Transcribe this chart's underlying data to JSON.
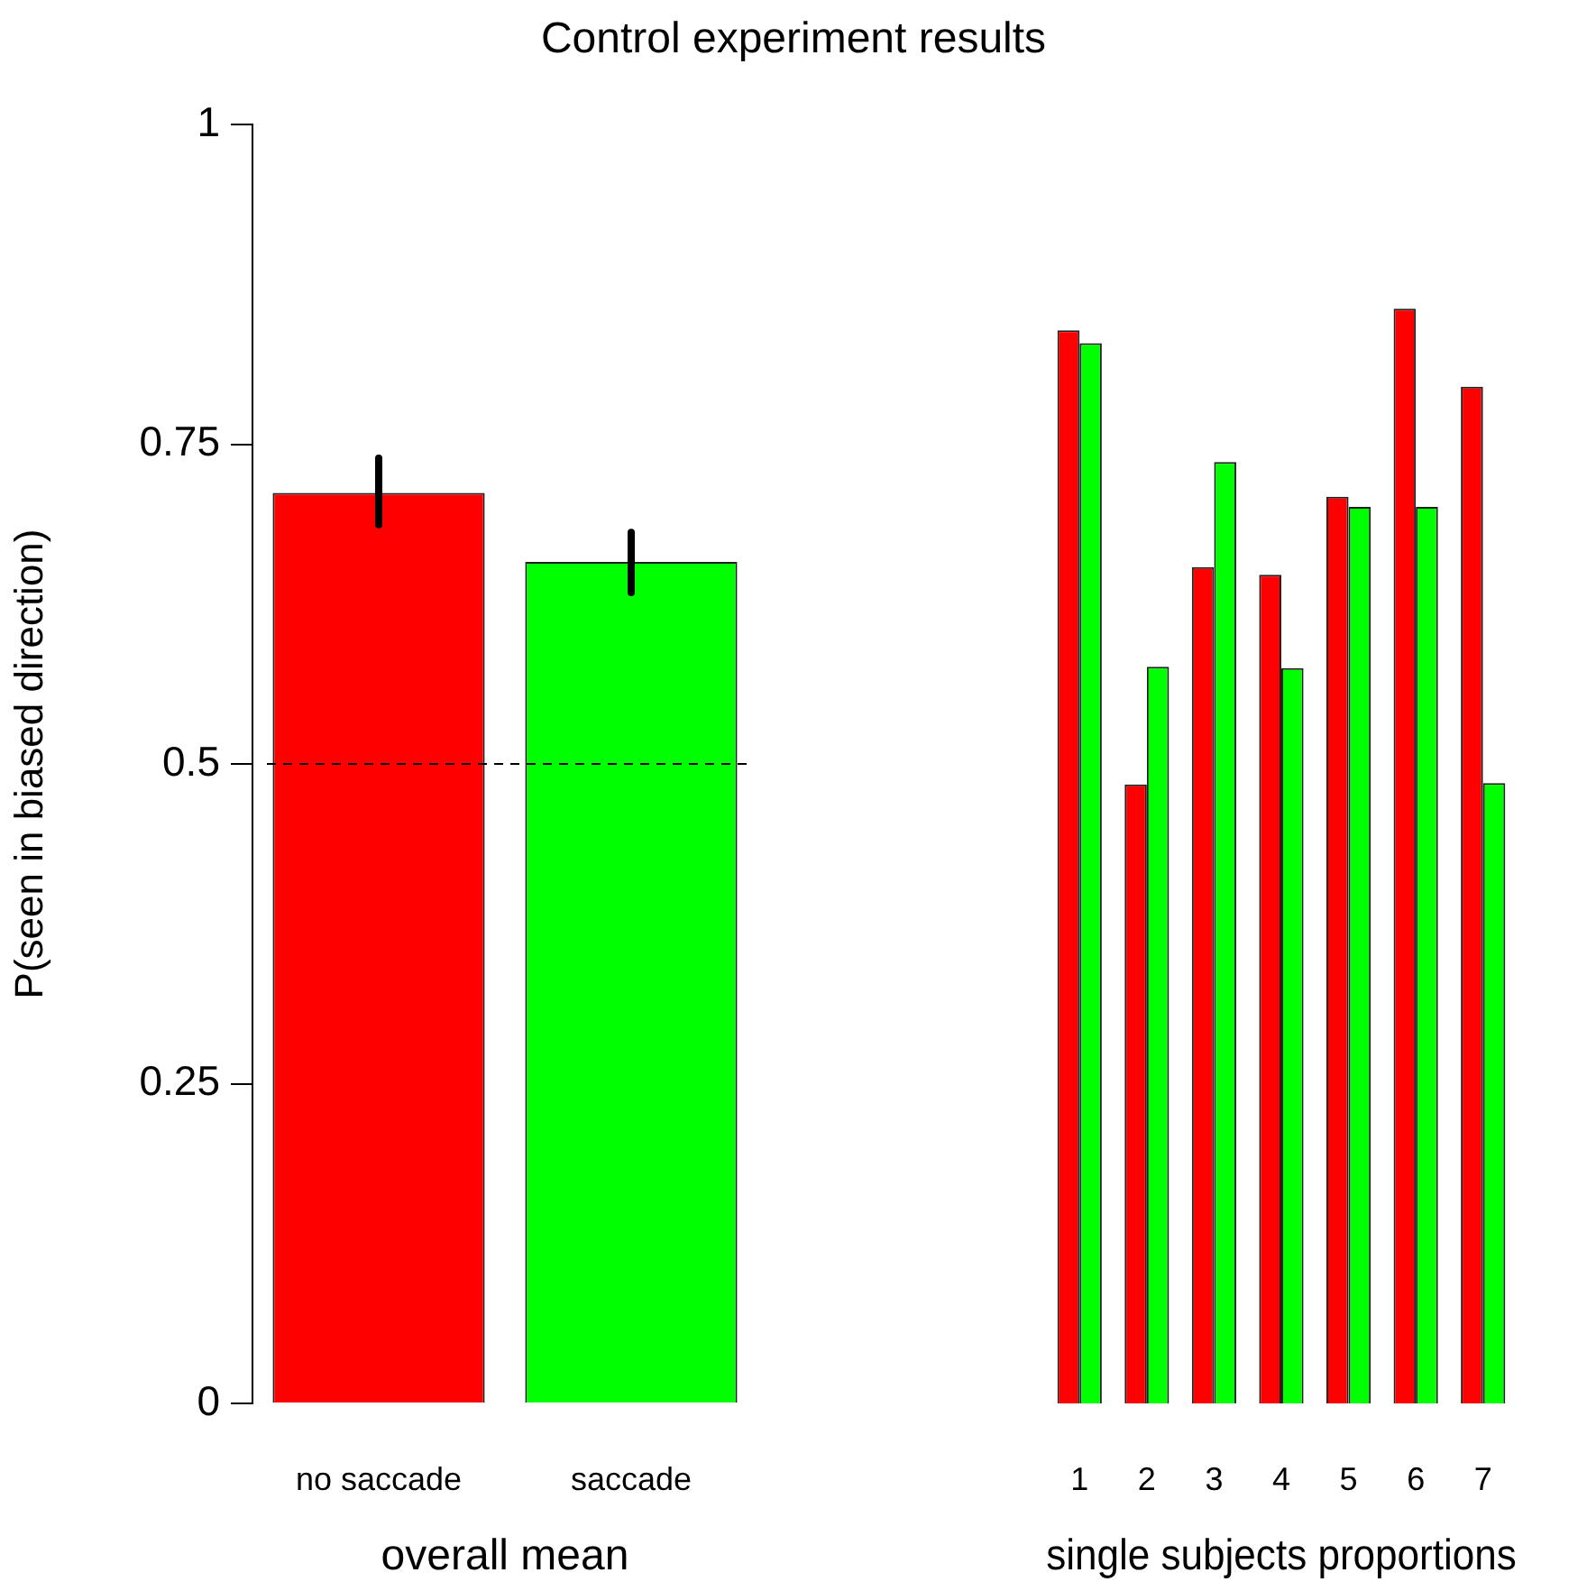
{
  "chart_data": [
    {
      "type": "bar",
      "title": "Control experiment results",
      "ylabel": "P(seen in biased direction)",
      "xlabel": "overall mean",
      "categories": [
        "no saccade",
        "saccade"
      ],
      "values": [
        0.712,
        0.658
      ],
      "colors": [
        "#ff0000",
        "#00ff00"
      ],
      "errors": [
        [
          0.687,
          0.739
        ],
        [
          0.634,
          0.681
        ]
      ],
      "ylim": [
        0,
        1
      ],
      "yticks": [
        0,
        {
          "value": 0.25,
          "label": "0.25"
        },
        {
          "value": 0.5,
          "label": "0.5"
        },
        {
          "value": 0.75,
          "label": "0.75"
        },
        1
      ],
      "ref_lines": [
        {
          "axis": "y",
          "value": 0.5,
          "color": "#000000",
          "line_style": "dashed"
        }
      ]
    },
    {
      "type": "bar",
      "xlabel": "single subjects proportions",
      "categories": [
        "1",
        "2",
        "3",
        "4",
        "5",
        "6",
        "7"
      ],
      "ylim": [
        0,
        1
      ],
      "tick_labels": "x",
      "series": [
        {
          "color": "#ff0000",
          "values": [
            0.839,
            0.484,
            0.654,
            0.648,
            0.709,
            0.856,
            0.795
          ]
        },
        {
          "color": "#00ff00",
          "values": [
            0.829,
            0.576,
            0.736,
            0.575,
            0.701,
            0.701,
            0.485
          ]
        }
      ]
    }
  ]
}
